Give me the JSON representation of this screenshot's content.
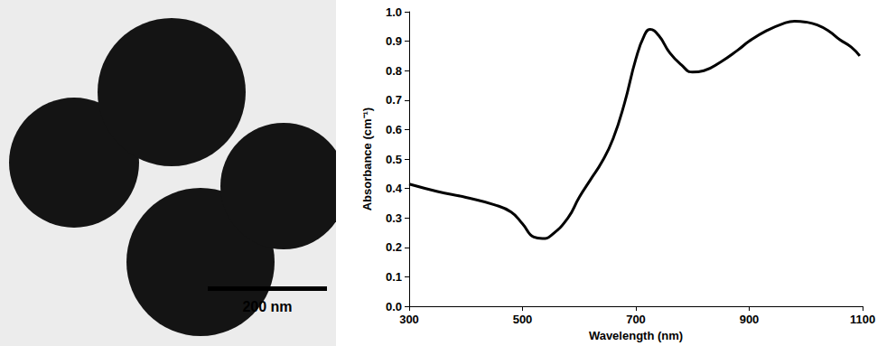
{
  "micrograph": {
    "scale_bar_label": "200 nm"
  },
  "chart_data": {
    "type": "line",
    "x_label": "Wavelength (nm)",
    "y_label": "Absorbance (cm⁻¹)",
    "x": [
      300,
      350,
      400,
      450,
      480,
      500,
      520,
      535,
      550,
      580,
      600,
      620,
      640,
      660,
      680,
      700,
      715,
      725,
      740,
      760,
      780,
      800,
      820,
      850,
      880,
      900,
      930,
      960,
      980,
      1000,
      1020,
      1040,
      1060,
      1080,
      1095
    ],
    "values": [
      0.415,
      0.39,
      0.37,
      0.345,
      0.32,
      0.28,
      0.235,
      0.23,
      0.24,
      0.3,
      0.37,
      0.43,
      0.49,
      0.57,
      0.69,
      0.84,
      0.92,
      0.94,
      0.92,
      0.86,
      0.82,
      0.795,
      0.8,
      0.83,
      0.87,
      0.9,
      0.935,
      0.96,
      0.968,
      0.965,
      0.955,
      0.935,
      0.905,
      0.88,
      0.85
    ],
    "color": "#000000",
    "xlim": [
      300,
      1100
    ],
    "xticks": [
      300,
      500,
      700,
      900,
      1100
    ],
    "ylim": [
      0,
      1
    ],
    "yticks": [
      {
        "value": 0,
        "label": "0.0"
      },
      0.1,
      0.2,
      0.3,
      0.4,
      0.5,
      0.6,
      0.7,
      0.8,
      0.9,
      {
        "value": 1,
        "label": "1.0"
      }
    ],
    "grid": false
  }
}
